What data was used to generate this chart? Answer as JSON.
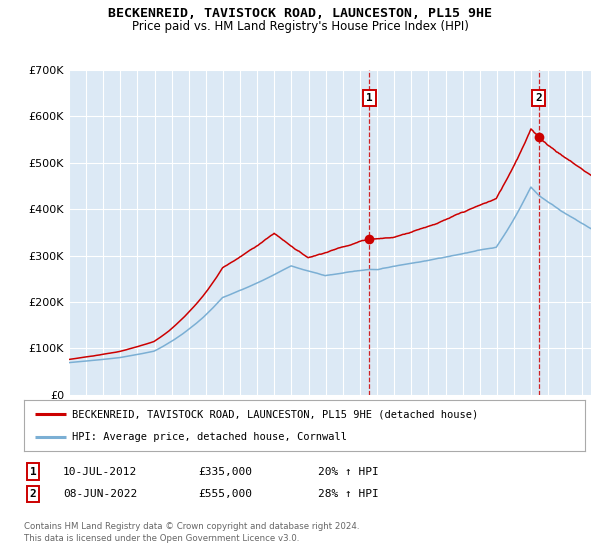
{
  "title": "BECKENREID, TAVISTOCK ROAD, LAUNCESTON, PL15 9HE",
  "subtitle": "Price paid vs. HM Land Registry's House Price Index (HPI)",
  "red_label": "BECKENREID, TAVISTOCK ROAD, LAUNCESTON, PL15 9HE (detached house)",
  "blue_label": "HPI: Average price, detached house, Cornwall",
  "annotation1_date": "10-JUL-2012",
  "annotation1_price": "£335,000",
  "annotation1_hpi": "20% ↑ HPI",
  "annotation1_year": 2012.54,
  "annotation1_value": 335000,
  "annotation2_date": "08-JUN-2022",
  "annotation2_price": "£555,000",
  "annotation2_hpi": "28% ↑ HPI",
  "annotation2_year": 2022.44,
  "annotation2_value": 555000,
  "ylim": [
    0,
    700000
  ],
  "xlim_start": 1995,
  "xlim_end": 2025,
  "footnote1": "Contains HM Land Registry data © Crown copyright and database right 2024.",
  "footnote2": "This data is licensed under the Open Government Licence v3.0.",
  "bg_color": "#ffffff",
  "plot_bg_color": "#dce9f5",
  "red_color": "#cc0000",
  "blue_color": "#7bafd4",
  "grid_color": "#ffffff",
  "vline_color": "#cc0000"
}
